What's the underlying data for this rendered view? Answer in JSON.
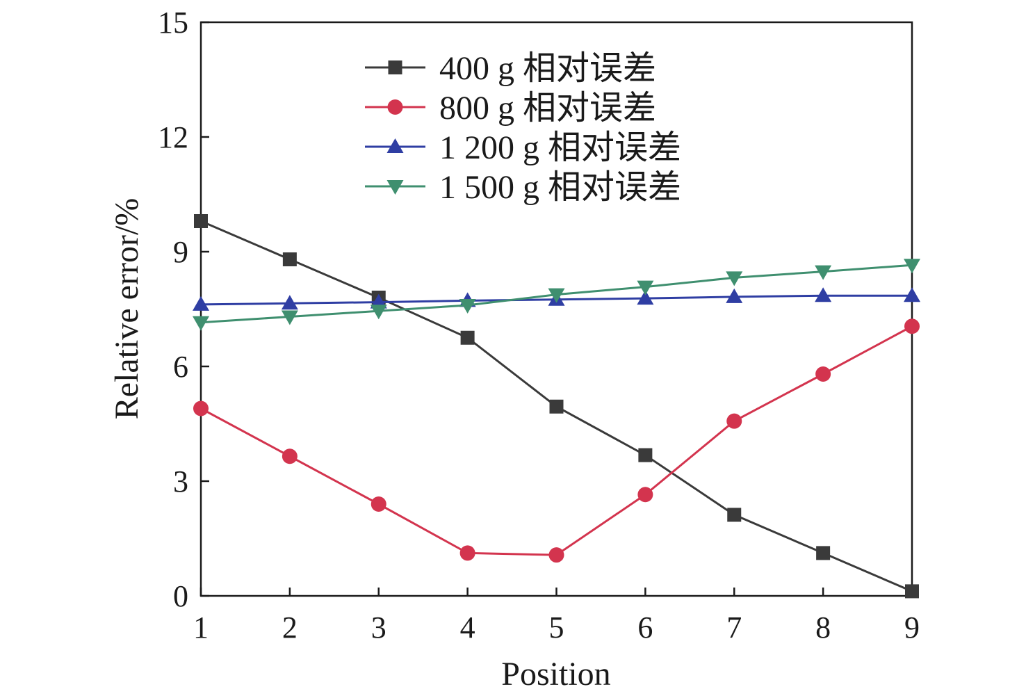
{
  "chart_data": {
    "type": "line",
    "xlabel": "Position",
    "ylabel": "Relative error/%",
    "xlim": [
      1,
      9
    ],
    "ylim": [
      0,
      15
    ],
    "x_ticks": [
      1,
      2,
      3,
      4,
      5,
      6,
      7,
      8,
      9
    ],
    "y_ticks": [
      0,
      3,
      6,
      9,
      12,
      15
    ],
    "grid": false,
    "legend_position": "top-center",
    "x": [
      1,
      2,
      3,
      4,
      5,
      6,
      7,
      8,
      9
    ],
    "series": [
      {
        "name": "400 g 相对误差",
        "marker": "square",
        "color": "#3a3a3a",
        "values": [
          9.8,
          8.8,
          7.8,
          6.75,
          4.95,
          3.68,
          2.12,
          1.12,
          0.12
        ]
      },
      {
        "name": "800 g 相对误差",
        "marker": "circle",
        "color": "#d3344e",
        "values": [
          4.9,
          3.65,
          2.4,
          1.12,
          1.07,
          2.65,
          4.57,
          5.8,
          7.05
        ]
      },
      {
        "name": "1 200 g 相对误差",
        "marker": "triangle-up",
        "color": "#2f3ea3",
        "values": [
          7.62,
          7.65,
          7.68,
          7.72,
          7.75,
          7.78,
          7.82,
          7.85,
          7.85
        ]
      },
      {
        "name": "1 500 g 相对误差",
        "marker": "triangle-down",
        "color": "#3f8f6f",
        "values": [
          7.15,
          7.3,
          7.45,
          7.6,
          7.88,
          8.08,
          8.32,
          8.48,
          8.65
        ]
      }
    ]
  }
}
